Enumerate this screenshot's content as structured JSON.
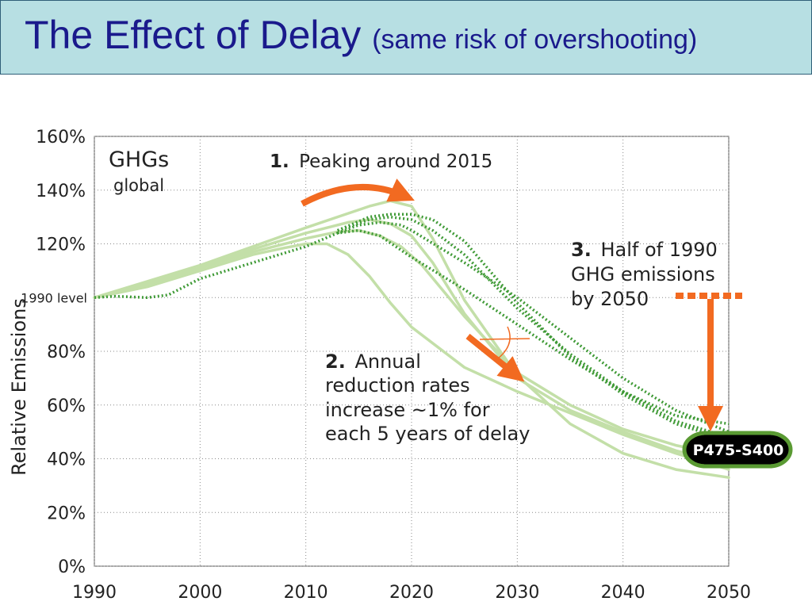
{
  "title": {
    "main": "The Effect of Delay",
    "sub": "(same risk of overshooting)"
  },
  "chart_data": {
    "type": "line",
    "xlim": [
      1990,
      2050
    ],
    "ylim": [
      0,
      160
    ],
    "grid": true,
    "ylabel": "Relative Emissions",
    "x_ticks": [
      1990,
      2000,
      2010,
      2020,
      2030,
      2040,
      2050
    ],
    "y_ticks": [
      {
        "v": 0,
        "label": "0%"
      },
      {
        "v": 20,
        "label": "20%"
      },
      {
        "v": 40,
        "label": "40%"
      },
      {
        "v": 60,
        "label": "60%"
      },
      {
        "v": 80,
        "label": "80%"
      },
      {
        "v": 100,
        "label": "1990 level"
      },
      {
        "v": 120,
        "label": "120%"
      },
      {
        "v": 140,
        "label": "140%"
      },
      {
        "v": 160,
        "label": "160%"
      }
    ],
    "panel_label": "GHGs",
    "panel_sublabel": "global",
    "annotations": {
      "a1_num": "1.",
      "a1_text": "Peaking around 2015",
      "a2_num": "2.",
      "a2_lines": [
        "Annual",
        "reduction rates",
        "increase ~1% for",
        "each 5 years of delay"
      ],
      "a3_num": "3.",
      "a3_lines": [
        "Half of 1990",
        "GHG emissions",
        "by 2050"
      ],
      "badge": "P475-S400"
    },
    "colors": {
      "solid": "#c3dfa8",
      "dotted": "#3f9a36",
      "arrow": "#f26a21",
      "badge_fill": "#000000",
      "badge_ring": "#5a9a33"
    },
    "series": [
      {
        "style": "solid",
        "x": [
          1990,
          1995,
          2000,
          2005,
          2008,
          2010,
          2012,
          2014,
          2016,
          2018,
          2020,
          2025,
          2030,
          2035,
          2040,
          2045,
          2050
        ],
        "values": [
          100,
          104,
          110,
          116,
          118.5,
          120,
          120,
          116,
          108,
          98,
          89,
          74,
          65,
          57,
          49,
          42,
          36
        ]
      },
      {
        "style": "solid",
        "x": [
          1990,
          1995,
          2000,
          2005,
          2010,
          2013,
          2015,
          2017,
          2019,
          2021,
          2025,
          2030,
          2035,
          2040,
          2045,
          2050
        ],
        "values": [
          100,
          105,
          111,
          117,
          122,
          124.5,
          125,
          123,
          119,
          112,
          93,
          72,
          60,
          51,
          45,
          41
        ]
      },
      {
        "style": "solid",
        "x": [
          1990,
          1995,
          2000,
          2005,
          2010,
          2014,
          2016,
          2018,
          2020,
          2022,
          2025,
          2030,
          2035,
          2040,
          2045,
          2050
        ],
        "values": [
          100,
          105,
          111,
          118,
          124,
          128,
          129,
          127.5,
          123,
          113,
          94,
          70,
          58,
          50,
          43,
          38
        ]
      },
      {
        "style": "solid",
        "x": [
          1990,
          1995,
          2000,
          2005,
          2010,
          2013,
          2016,
          2018,
          2020,
          2022,
          2025,
          2030,
          2035,
          2040,
          2045,
          2050
        ],
        "values": [
          100,
          106,
          112,
          119,
          126,
          130,
          134,
          136,
          134,
          122,
          99,
          71,
          53,
          42,
          36,
          33
        ]
      },
      {
        "style": "dotted",
        "x": [
          1990,
          1992,
          1995,
          1997,
          2000,
          2005,
          2010,
          2013,
          2015,
          2017,
          2020,
          2025,
          2030,
          2035,
          2040,
          2045,
          2050
        ],
        "values": [
          100,
          100.5,
          100,
          101,
          107,
          113,
          119,
          124,
          125,
          123,
          115,
          103,
          90,
          77,
          65,
          56,
          53
        ]
      },
      {
        "style": "dotted",
        "x": [
          2013,
          2015,
          2017,
          2019,
          2020,
          2025,
          2030,
          2035,
          2040,
          2045,
          2050
        ],
        "values": [
          124,
          127,
          128,
          127,
          125,
          113,
          100,
          85,
          70,
          58,
          50
        ]
      },
      {
        "style": "dotted",
        "x": [
          2013,
          2016,
          2018,
          2020,
          2022,
          2025,
          2030,
          2035,
          2040,
          2045,
          2050
        ],
        "values": [
          125,
          129,
          130,
          129,
          125,
          116,
          96,
          79,
          65,
          54,
          48
        ]
      },
      {
        "style": "dotted",
        "x": [
          2013,
          2016,
          2018,
          2020,
          2022,
          2025,
          2030,
          2035,
          2040,
          2045,
          2050
        ],
        "values": [
          125,
          130,
          131,
          131,
          129,
          121,
          98,
          78,
          64,
          53,
          47
        ]
      }
    ]
  }
}
